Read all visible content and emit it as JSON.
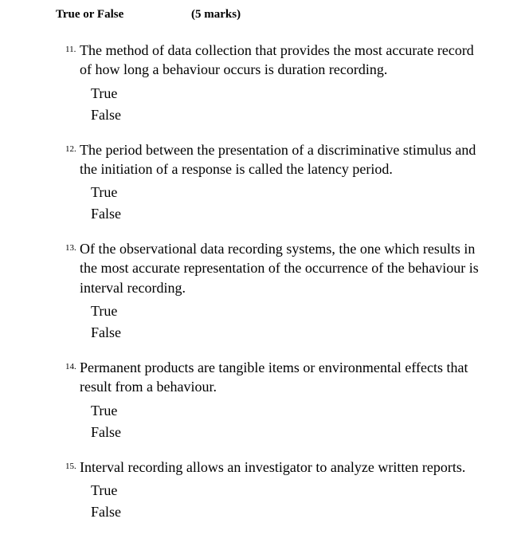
{
  "header": {
    "title": "True or False",
    "marks": "(5 marks)"
  },
  "questions": [
    {
      "number": "11.",
      "text": "The method of data collection that provides the most accurate record of how long a behaviour occurs is duration recording.",
      "option_true": "True",
      "option_false": "False"
    },
    {
      "number": "12.",
      "text": "The period between the presentation of a discriminative stimulus and the initiation of a response is called the latency period.",
      "option_true": "True",
      "option_false": "False"
    },
    {
      "number": "13.",
      "text": "Of the observational data recording systems, the one which results in the most accurate representation of the occurrence of the behaviour is interval recording.",
      "option_true": "True",
      "option_false": "False"
    },
    {
      "number": "14.",
      "text": "Permanent products are tangible items or environmental effects that result from a behaviour.",
      "option_true": "True",
      "option_false": "False"
    },
    {
      "number": "15.",
      "text": "Interval recording allows an investigator to analyze written reports.",
      "option_true": "True",
      "option_false": "False"
    }
  ]
}
